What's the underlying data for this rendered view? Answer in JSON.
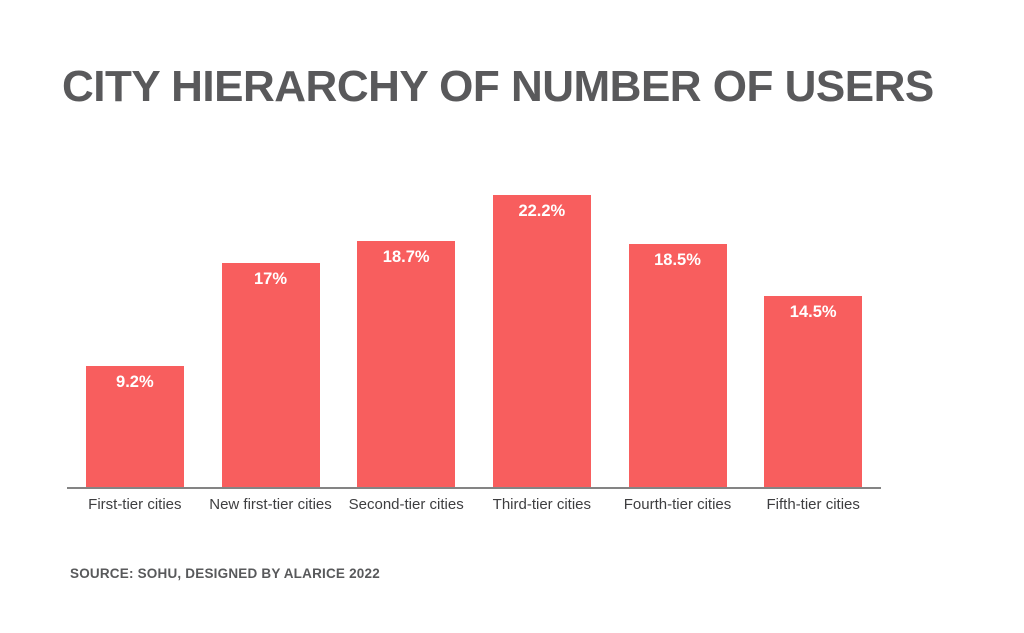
{
  "chart_data": {
    "type": "bar",
    "title": "CITY HIERARCHY OF NUMBER OF USERS",
    "categories": [
      "First-tier cities",
      "New first-tier cities",
      "Second-tier cities",
      "Third-tier cities",
      "Fourth-tier cities",
      "Fifth-tier cities"
    ],
    "values": [
      9.2,
      17,
      18.7,
      22.2,
      18.5,
      14.5
    ],
    "value_labels": [
      "9.2%",
      "17%",
      "18.7%",
      "22.2%",
      "18.5%",
      "14.5%"
    ],
    "xlabel": "",
    "ylabel": "",
    "ylim": [
      0,
      25
    ],
    "grid": false,
    "legend": "none",
    "value_label_position": "inside-top",
    "bar_color": "#F85E5E",
    "value_label_color": "#FFFFFF",
    "title_color": "#59595B",
    "category_label_color": "#3E3E40",
    "axis_color": "#848484",
    "source": "SOURCE: SOHU, DESIGNED BY ALARICE 2022"
  }
}
